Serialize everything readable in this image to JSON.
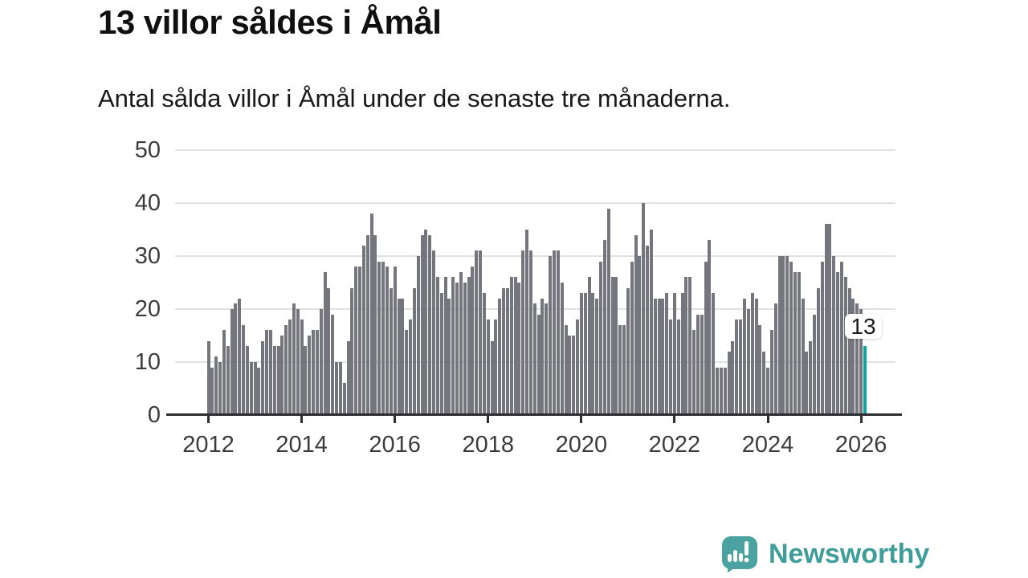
{
  "header": {
    "title": "13 villor såldes i Åmål",
    "subtitle": "Antal sålda villor i Åmål under de senaste tre månaderna."
  },
  "chart_data": {
    "type": "bar",
    "title": "13 villor såldes i Åmål",
    "subtitle": "Antal sålda villor i Åmål under de senaste tre månaderna.",
    "frequency": "monthly",
    "x_range": {
      "start": "2012-01",
      "end": "2026-02"
    },
    "x_tick_labels": [
      "2012",
      "2014",
      "2016",
      "2018",
      "2020",
      "2022",
      "2024",
      "2026"
    ],
    "y_ticks": [
      0,
      10,
      20,
      30,
      40,
      50
    ],
    "ylim": [
      0,
      50
    ],
    "grid": true,
    "bar_color": "#75757d",
    "highlight_color": "#0da5a1",
    "values": [
      14,
      9,
      11,
      10,
      16,
      13,
      20,
      21,
      22,
      17,
      13,
      10,
      10,
      9,
      14,
      16,
      16,
      13,
      13,
      15,
      17,
      18,
      21,
      20,
      18,
      13,
      15,
      16,
      16,
      20,
      27,
      24,
      19,
      10,
      10,
      6,
      14,
      24,
      28,
      28,
      32,
      34,
      38,
      34,
      29,
      29,
      28,
      24,
      28,
      22,
      22,
      16,
      18,
      24,
      30,
      34,
      35,
      34,
      31,
      26,
      23,
      26,
      22,
      26,
      25,
      27,
      25,
      26,
      28,
      31,
      31,
      23,
      18,
      14,
      18,
      22,
      24,
      24,
      26,
      26,
      25,
      31,
      35,
      31,
      21,
      19,
      22,
      21,
      30,
      31,
      31,
      25,
      17,
      15,
      15,
      18,
      23,
      23,
      26,
      23,
      22,
      29,
      33,
      39,
      26,
      26,
      17,
      17,
      24,
      29,
      34,
      30,
      40,
      32,
      35,
      22,
      22,
      22,
      23,
      18,
      23,
      18,
      23,
      26,
      26,
      16,
      19,
      19,
      29,
      33,
      23,
      9,
      9,
      9,
      12,
      14,
      18,
      18,
      22,
      20,
      23,
      22,
      17,
      12,
      9,
      16,
      21,
      30,
      30,
      30,
      29,
      27,
      27,
      22,
      12,
      14,
      19,
      24,
      29,
      36,
      36,
      30,
      27,
      29,
      26,
      24,
      22,
      21,
      20,
      13
    ],
    "highlight": {
      "index": 169,
      "value": 13,
      "label": "13"
    }
  },
  "footer": {
    "brand": "Newsworthy",
    "brand_color": "#3f9e99",
    "logo_icon": "bar-chart-exclamation-bubble-icon"
  }
}
